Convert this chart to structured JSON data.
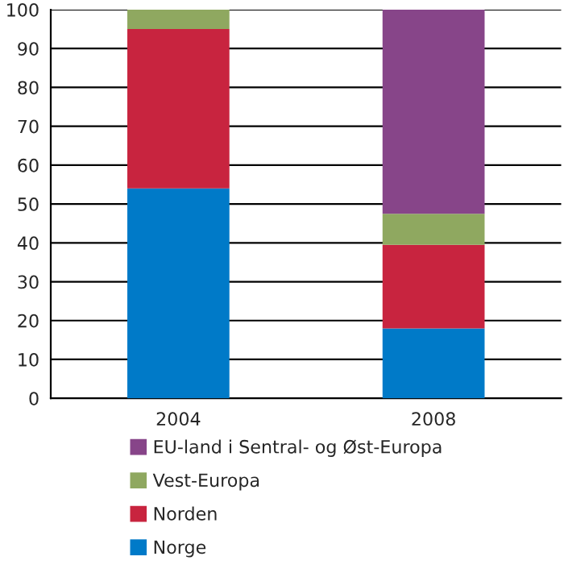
{
  "chart_data": {
    "type": "bar",
    "stacked": true,
    "categories": [
      "2004",
      "2008"
    ],
    "series": [
      {
        "name": "Norge",
        "color": "#007ac8",
        "values": [
          54,
          18
        ]
      },
      {
        "name": "Norden",
        "color": "#c8243f",
        "values": [
          41,
          21.5
        ]
      },
      {
        "name": "Vest-Europa",
        "color": "#8fa860",
        "values": [
          5,
          8
        ]
      },
      {
        "name": "EU-land i Sentral- og Øst-Europa",
        "color": "#874589",
        "values": [
          null,
          52.5
        ]
      }
    ],
    "ylim": [
      0,
      100
    ],
    "yticks": [
      0,
      10,
      20,
      30,
      40,
      50,
      60,
      70,
      80,
      90,
      100
    ],
    "grid": "y",
    "legend": "bottom"
  }
}
